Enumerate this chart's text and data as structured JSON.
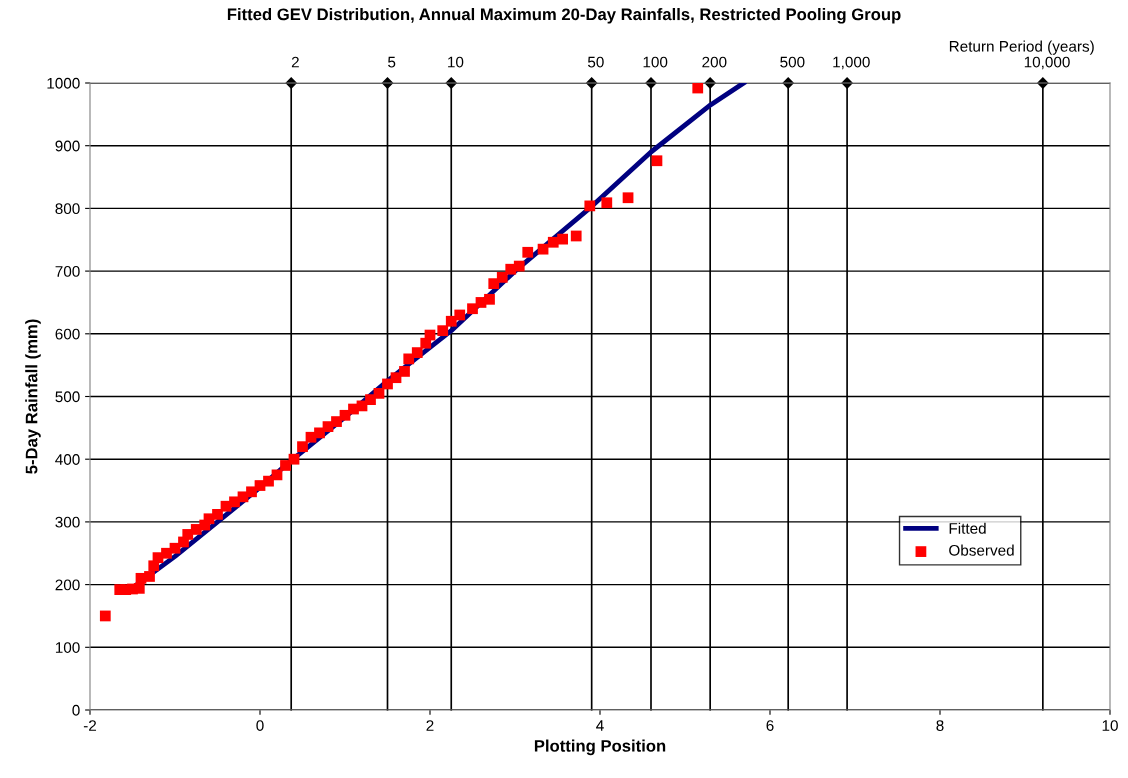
{
  "chart_data": {
    "type": "scatter",
    "title": "Fitted GEV Distribution, Annual Maximum 20-Day Rainfalls, Restricted Pooling Group",
    "xlabel": "Plotting Position",
    "ylabel": "5-Day Rainfall (mm)",
    "xlim": [
      -2,
      10
    ],
    "xticks": [
      -2,
      0,
      2,
      4,
      6,
      8,
      10
    ],
    "ylim": [
      0,
      1000
    ],
    "yticks": [
      0,
      100,
      200,
      300,
      400,
      500,
      600,
      700,
      800,
      900,
      1000
    ],
    "annotations": [
      "Return Period (years)",
      {
        "text": "2",
        "x": 0.367,
        "y": 1000
      },
      {
        "text": "5",
        "x": 1.5,
        "y": 1000
      },
      {
        "text": "10",
        "x": 2.25,
        "y": 1000
      },
      {
        "text": "50",
        "x": 3.902,
        "y": 1000
      },
      {
        "text": "100",
        "x": 4.6,
        "y": 1000
      },
      {
        "text": "200",
        "x": 5.296,
        "y": 1000
      },
      {
        "text": "500",
        "x": 6.214,
        "y": 1000
      },
      {
        "text": "1,000",
        "x": 6.907,
        "y": 1000
      },
      {
        "text": "10,000",
        "x": 9.21,
        "y": 1000
      }
    ],
    "grid": "y",
    "legend": "right",
    "ref_lines": [
      {
        "axis": "x",
        "value": 0.367
      },
      {
        "axis": "x",
        "value": 1.5
      },
      {
        "axis": "x",
        "value": 2.25
      },
      {
        "axis": "x",
        "value": 3.902
      },
      {
        "axis": "x",
        "value": 4.6
      },
      {
        "axis": "x",
        "value": 5.296
      },
      {
        "axis": "x",
        "value": 6.214
      },
      {
        "axis": "x",
        "value": 6.907
      },
      {
        "axis": "x",
        "value": 9.21
      }
    ],
    "series": [
      {
        "name": "Fitted",
        "type": "line",
        "color": "#000080",
        "marker": "none",
        "x": [
          -1.55,
          -1.0,
          0.0,
          0.37,
          1.0,
          1.5,
          2.25,
          3.0,
          3.9,
          4.6,
          5.3,
          5.69
        ],
        "values": [
          190,
          245,
          355,
          398,
          467,
          525,
          605,
          700,
          803,
          890,
          965,
          1000
        ]
      },
      {
        "name": "Observed",
        "color": "#ff0000",
        "marker": "square",
        "x": [
          -1.82,
          -1.65,
          -1.58,
          -1.5,
          -1.42,
          -1.4,
          -1.3,
          -1.25,
          -1.2,
          -1.1,
          -1.0,
          -0.9,
          -0.85,
          -0.75,
          -0.65,
          -0.6,
          -0.5,
          -0.4,
          -0.3,
          -0.2,
          -0.1,
          0.0,
          0.1,
          0.2,
          0.3,
          0.4,
          0.5,
          0.6,
          0.7,
          0.8,
          0.9,
          1.0,
          1.1,
          1.2,
          1.3,
          1.4,
          1.5,
          1.6,
          1.7,
          1.75,
          1.85,
          1.95,
          2.0,
          2.15,
          2.25,
          2.35,
          2.5,
          2.6,
          2.7,
          2.75,
          2.85,
          2.95,
          3.05,
          3.15,
          3.33,
          3.45,
          3.56,
          3.72,
          3.88,
          4.08,
          4.33,
          4.67,
          5.15
        ],
        "values": [
          150,
          192,
          192,
          193,
          194,
          210,
          213,
          230,
          243,
          250,
          258,
          268,
          280,
          288,
          295,
          305,
          312,
          325,
          332,
          340,
          348,
          358,
          365,
          375,
          390,
          400,
          420,
          435,
          442,
          452,
          460,
          470,
          480,
          485,
          495,
          505,
          520,
          530,
          540,
          560,
          570,
          585,
          598,
          605,
          620,
          630,
          640,
          650,
          655,
          680,
          690,
          703,
          708,
          730,
          735,
          746,
          751,
          756,
          804,
          809,
          817,
          876,
          992
        ]
      }
    ]
  }
}
